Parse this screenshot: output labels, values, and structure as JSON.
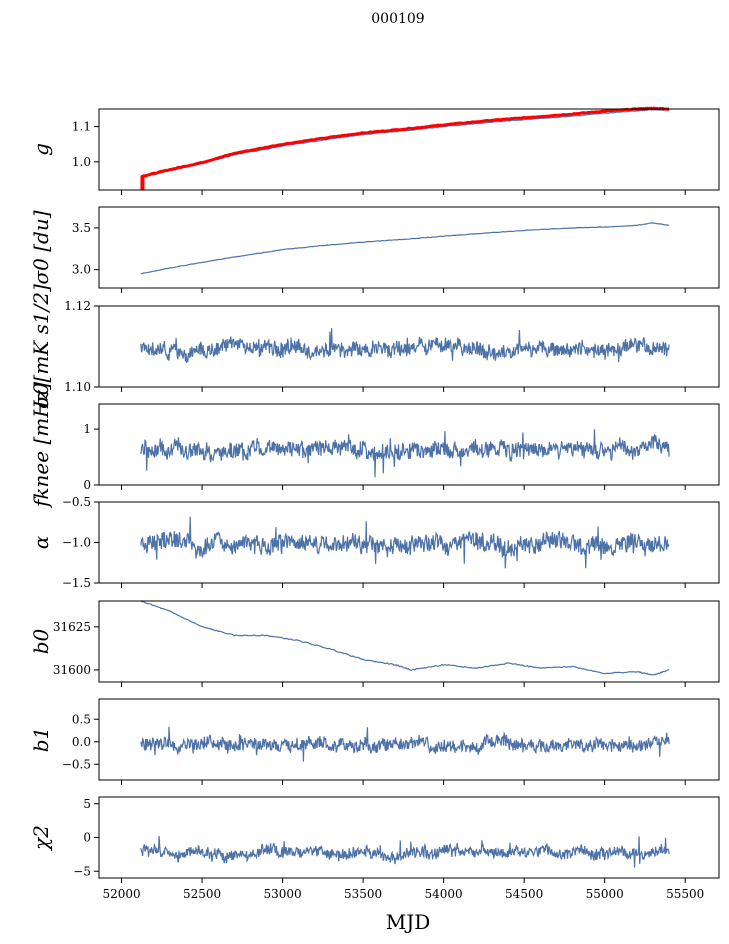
{
  "figure": {
    "title": "000109",
    "xlabel": "MJD",
    "x_ticks": [
      52000,
      52500,
      53000,
      53500,
      54000,
      54500,
      55000,
      55500
    ],
    "xlim": [
      51860,
      55710
    ]
  },
  "colors": {
    "series": "#4c72a8",
    "highlight": "#ff0000",
    "axes": "#000000",
    "background": "#ffffff"
  },
  "chart_data": [
    {
      "type": "line",
      "id": "g",
      "ylabel": "g",
      "ylim": [
        0.92,
        1.15
      ],
      "yticks": [
        1.0,
        1.1
      ],
      "ytick_labels": [
        "1.0",
        "1.1"
      ],
      "series": [
        {
          "color": "#4c72a8",
          "x": [
            52120,
            52300,
            52500,
            52700,
            53000,
            53300,
            53500,
            53800,
            54000,
            54300,
            54500,
            54800,
            55000,
            55200,
            55300,
            55400
          ],
          "y": [
            0.955,
            0.975,
            0.995,
            1.02,
            1.045,
            1.065,
            1.078,
            1.09,
            1.1,
            1.113,
            1.12,
            1.13,
            1.138,
            1.145,
            1.148,
            1.147
          ]
        },
        {
          "color": "#ff0000",
          "x": [
            52120,
            52300,
            52500,
            52700,
            53000,
            53300,
            53500,
            53800,
            54000,
            54300,
            54500,
            54800,
            55000,
            55200,
            55300,
            55400
          ],
          "y": [
            0.958,
            0.978,
            0.998,
            1.024,
            1.05,
            1.07,
            1.082,
            1.095,
            1.105,
            1.118,
            1.125,
            1.136,
            1.144,
            1.15,
            1.152,
            1.15
          ]
        }
      ],
      "spike": {
        "x": 52130,
        "y0": 0.92,
        "y1": 0.96
      }
    },
    {
      "type": "line",
      "id": "sigma0_du",
      "ylabel": "σ0 [du]",
      "ylim": [
        2.78,
        3.75
      ],
      "yticks": [
        3.0,
        3.5
      ],
      "ytick_labels": [
        "3.0",
        "3.5"
      ],
      "series": [
        {
          "color": "#4c72a8",
          "x": [
            52120,
            52300,
            52600,
            52800,
            53000,
            53200,
            53500,
            53800,
            54000,
            54200,
            54500,
            54800,
            55000,
            55200,
            55300,
            55400
          ],
          "y": [
            2.95,
            3.02,
            3.12,
            3.18,
            3.24,
            3.28,
            3.33,
            3.37,
            3.4,
            3.43,
            3.47,
            3.5,
            3.51,
            3.53,
            3.56,
            3.53
          ]
        }
      ]
    },
    {
      "type": "line",
      "id": "sigma0_mk",
      "ylabel": "σ0[mK s1/2]",
      "ylim": [
        1.1,
        1.12
      ],
      "yticks": [
        1.1,
        1.12
      ],
      "ytick_labels": [
        "1.10",
        "1.12"
      ],
      "noise": {
        "base": 1.1095,
        "amp": 0.0015,
        "seed": 3
      },
      "series": [
        {
          "color": "#4c72a8"
        }
      ]
    },
    {
      "type": "line",
      "id": "fknee",
      "ylabel": "fknee [mHz]",
      "ylim": [
        0,
        1.45
      ],
      "yticks": [
        0,
        1
      ],
      "ytick_labels": [
        "0",
        "1"
      ],
      "noise": {
        "base": 0.65,
        "amp": 0.12,
        "seed": 7
      },
      "series": [
        {
          "color": "#4c72a8"
        }
      ]
    },
    {
      "type": "line",
      "id": "alpha",
      "ylabel": "α",
      "ylim": [
        -1.5,
        -0.5
      ],
      "yticks": [
        -1.5,
        -1.0,
        -0.5
      ],
      "ytick_labels": [
        "−1.5",
        "−1.0",
        "−0.5"
      ],
      "noise": {
        "base": -1.02,
        "amp": 0.09,
        "seed": 11
      },
      "series": [
        {
          "color": "#4c72a8"
        }
      ]
    },
    {
      "type": "line",
      "id": "b0",
      "ylabel": "b0",
      "ylim": [
        31593,
        31640
      ],
      "yticks": [
        31600,
        31625
      ],
      "ytick_labels": [
        "31600",
        "31625"
      ],
      "series": [
        {
          "color": "#4c72a8",
          "x": [
            52120,
            52300,
            52500,
            52700,
            52900,
            53100,
            53300,
            53500,
            53700,
            53800,
            54000,
            54200,
            54400,
            54600,
            54800,
            55000,
            55200,
            55300,
            55400
          ],
          "y": [
            31640,
            31634,
            31625,
            31620,
            31620,
            31617,
            31612,
            31606,
            31603,
            31600,
            31603,
            31601,
            31604,
            31601,
            31602,
            31598,
            31599,
            31597,
            31600
          ]
        }
      ]
    },
    {
      "type": "line",
      "id": "b1",
      "ylabel": "b1",
      "ylim": [
        -0.85,
        0.95
      ],
      "yticks": [
        -0.5,
        0.0,
        0.5
      ],
      "ytick_labels": [
        "−0.5",
        "0.0",
        "0.5"
      ],
      "noise": {
        "base": -0.05,
        "amp": 0.12,
        "seed": 19
      },
      "series": [
        {
          "color": "#4c72a8"
        }
      ]
    },
    {
      "type": "line",
      "id": "chi2",
      "ylabel": "χ2",
      "ylim": [
        -6,
        6
      ],
      "yticks": [
        -5,
        0,
        5
      ],
      "ytick_labels": [
        "−5",
        "0",
        "5"
      ],
      "noise": {
        "base": -2.3,
        "amp": 0.7,
        "seed": 23
      },
      "series": [
        {
          "color": "#4c72a8"
        }
      ]
    }
  ]
}
